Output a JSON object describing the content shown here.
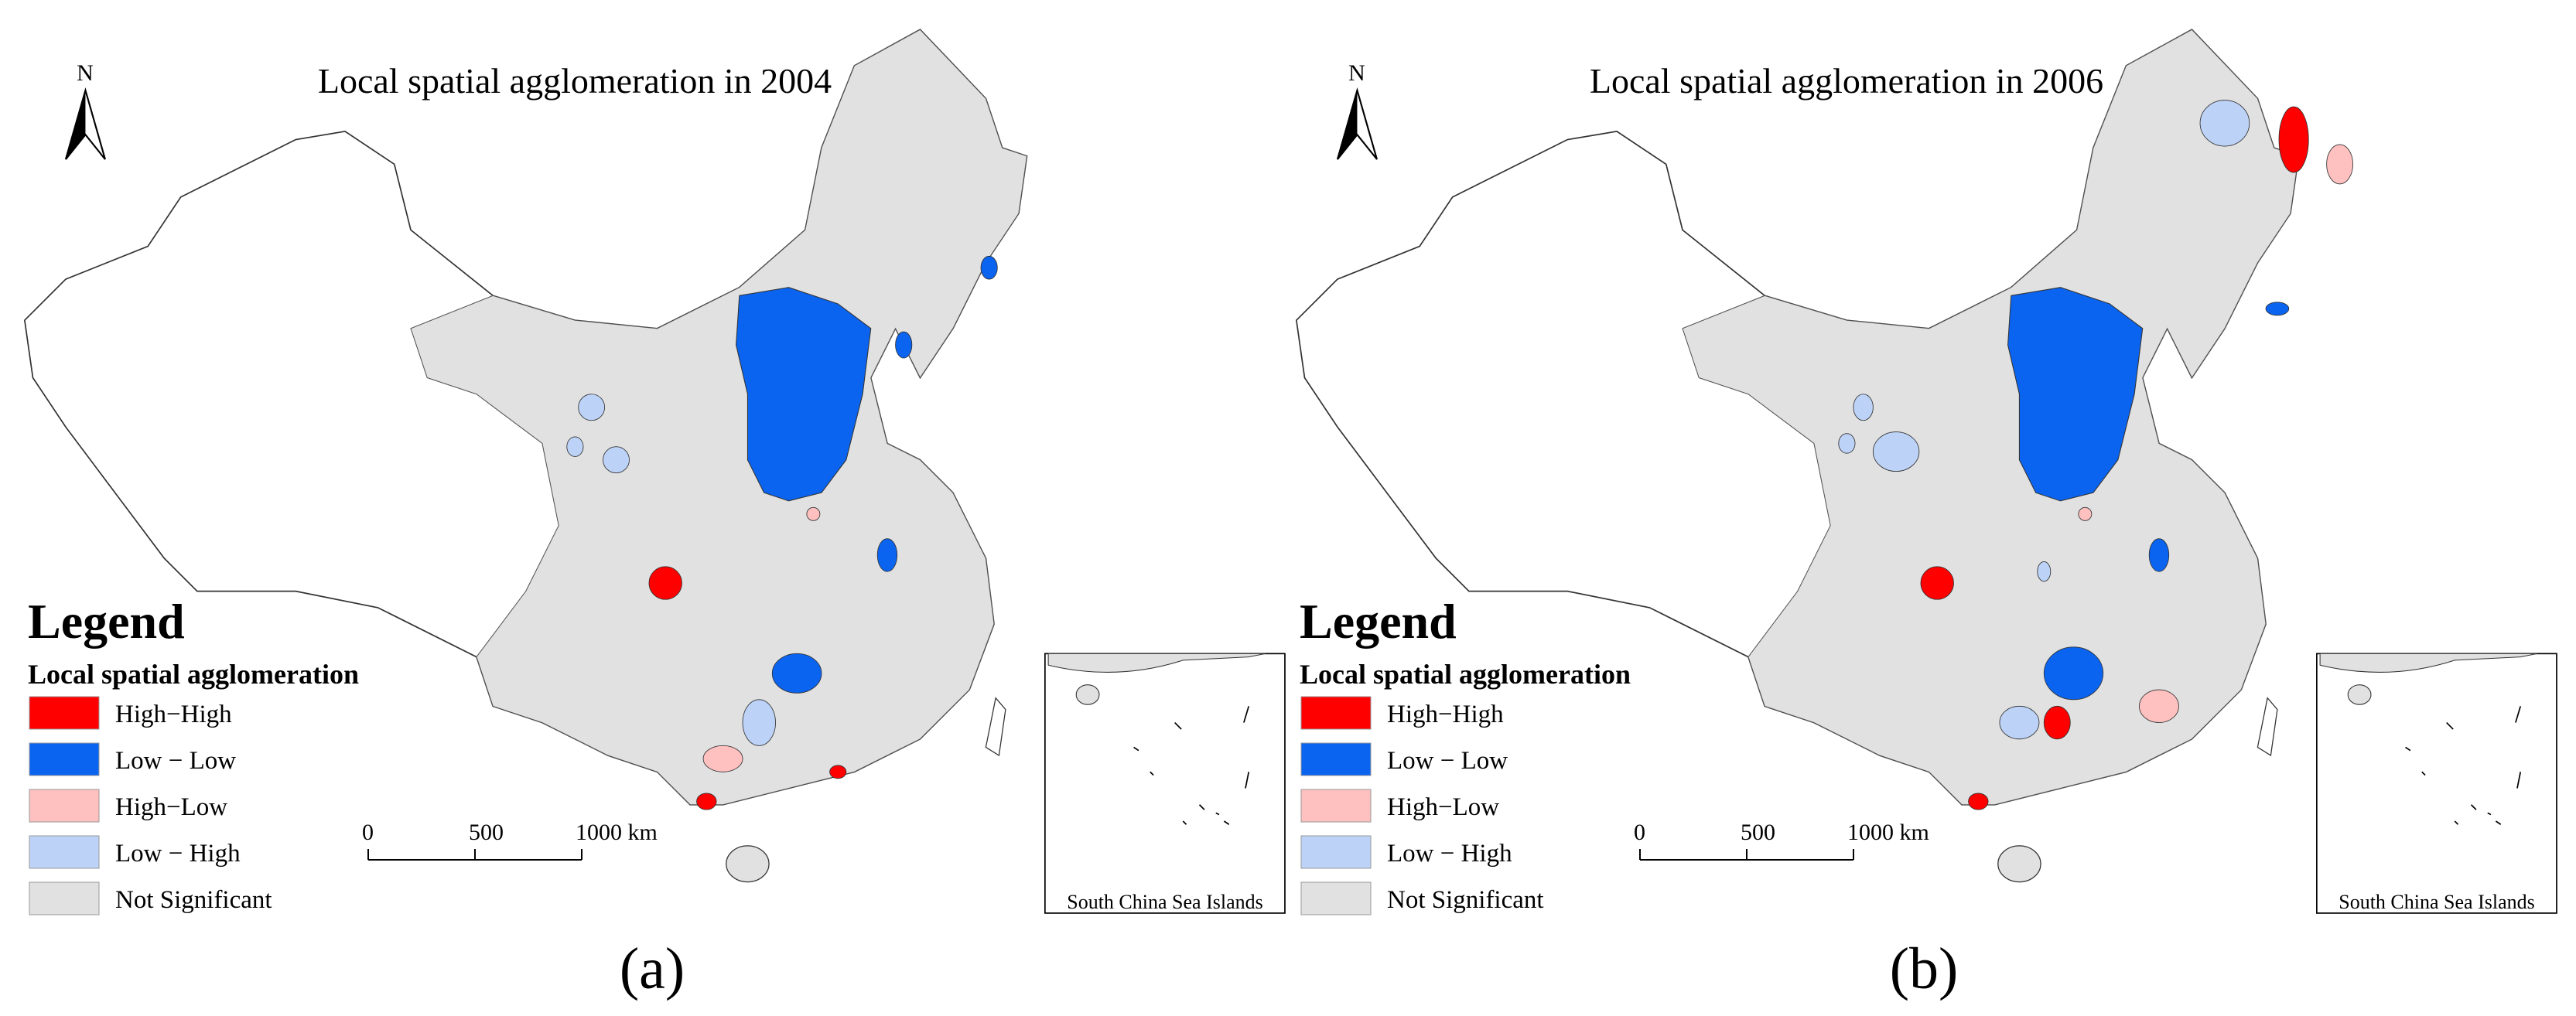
{
  "panels": [
    {
      "title": "Local spatial agglomeration in 2004",
      "panel_label": "(a)"
    },
    {
      "title": "Local spatial agglomeration in 2006",
      "panel_label": "(b)"
    }
  ],
  "north_label": "N",
  "legend": {
    "title": "Legend",
    "subtitle": "Local spatial agglomeration",
    "items": [
      {
        "label": "High−High",
        "color": "#ff0000"
      },
      {
        "label": "Low − Low",
        "color": "#0a64f0"
      },
      {
        "label": "High−Low",
        "color": "#ffc0c0"
      },
      {
        "label": "Low − High",
        "color": "#bcd2f7"
      },
      {
        "label": "Not Significant",
        "color": "#e1e1e1"
      }
    ]
  },
  "scale_bar": {
    "ticks": [
      0,
      500,
      {
        "value": 1000,
        "label": "1000 km"
      }
    ]
  },
  "inset_label": "South China Sea Islands"
}
